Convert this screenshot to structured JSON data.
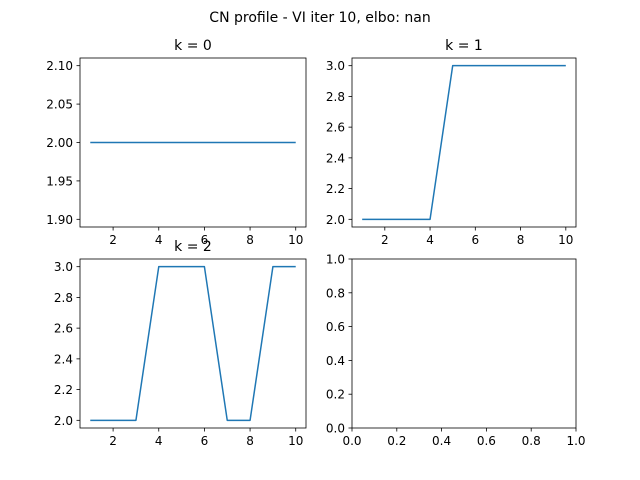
{
  "suptitle": "CN profile - VI iter 10, elbo: nan",
  "line_color": "#1f77b4",
  "chart_data": [
    {
      "type": "line",
      "title": "k = 0",
      "x": [
        1,
        2,
        3,
        4,
        5,
        6,
        7,
        8,
        9,
        10
      ],
      "series": [
        {
          "values": [
            2,
            2,
            2,
            2,
            2,
            2,
            2,
            2,
            2,
            2
          ]
        }
      ],
      "xlim": [
        0.55,
        10.45
      ],
      "ylim": [
        1.89,
        2.11
      ],
      "xticks": [
        2,
        4,
        6,
        8,
        10
      ],
      "yticks": [
        1.9,
        1.95,
        2.0,
        2.05,
        2.1
      ],
      "xtick_labels": [
        "2",
        "4",
        "6",
        "8",
        "10"
      ],
      "ytick_labels": [
        "1.90",
        "1.95",
        "2.00",
        "2.05",
        "2.10"
      ]
    },
    {
      "type": "line",
      "title": "k = 1",
      "x": [
        1,
        2,
        3,
        4,
        5,
        6,
        7,
        8,
        9,
        10
      ],
      "series": [
        {
          "values": [
            2,
            2,
            2,
            2,
            3,
            3,
            3,
            3,
            3,
            3
          ]
        }
      ],
      "xlim": [
        0.55,
        10.45
      ],
      "ylim": [
        1.95,
        3.05
      ],
      "xticks": [
        2,
        4,
        6,
        8,
        10
      ],
      "yticks": [
        2.0,
        2.2,
        2.4,
        2.6,
        2.8,
        3.0
      ],
      "xtick_labels": [
        "2",
        "4",
        "6",
        "8",
        "10"
      ],
      "ytick_labels": [
        "2.0",
        "2.2",
        "2.4",
        "2.6",
        "2.8",
        "3.0"
      ]
    },
    {
      "type": "line",
      "title": "k = 2",
      "x": [
        1,
        2,
        3,
        4,
        5,
        6,
        7,
        8,
        9,
        10
      ],
      "series": [
        {
          "values": [
            2,
            2,
            2,
            3,
            3,
            3,
            2,
            2,
            3,
            3
          ]
        }
      ],
      "xlim": [
        0.55,
        10.45
      ],
      "ylim": [
        1.95,
        3.05
      ],
      "xticks": [
        2,
        4,
        6,
        8,
        10
      ],
      "yticks": [
        2.0,
        2.2,
        2.4,
        2.6,
        2.8,
        3.0
      ],
      "xtick_labels": [
        "2",
        "4",
        "6",
        "8",
        "10"
      ],
      "ytick_labels": [
        "2.0",
        "2.2",
        "2.4",
        "2.6",
        "2.8",
        "3.0"
      ]
    },
    {
      "type": "line",
      "title": "",
      "x": [],
      "series": [],
      "xlim": [
        0.0,
        1.0
      ],
      "ylim": [
        0.0,
        1.0
      ],
      "xticks": [
        0.0,
        0.2,
        0.4,
        0.6,
        0.8,
        1.0
      ],
      "yticks": [
        0.0,
        0.2,
        0.4,
        0.6,
        0.8,
        1.0
      ],
      "xtick_labels": [
        "0.0",
        "0.2",
        "0.4",
        "0.6",
        "0.8",
        "1.0"
      ],
      "ytick_labels": [
        "0.0",
        "0.2",
        "0.4",
        "0.6",
        "0.8",
        "1.0"
      ]
    }
  ]
}
